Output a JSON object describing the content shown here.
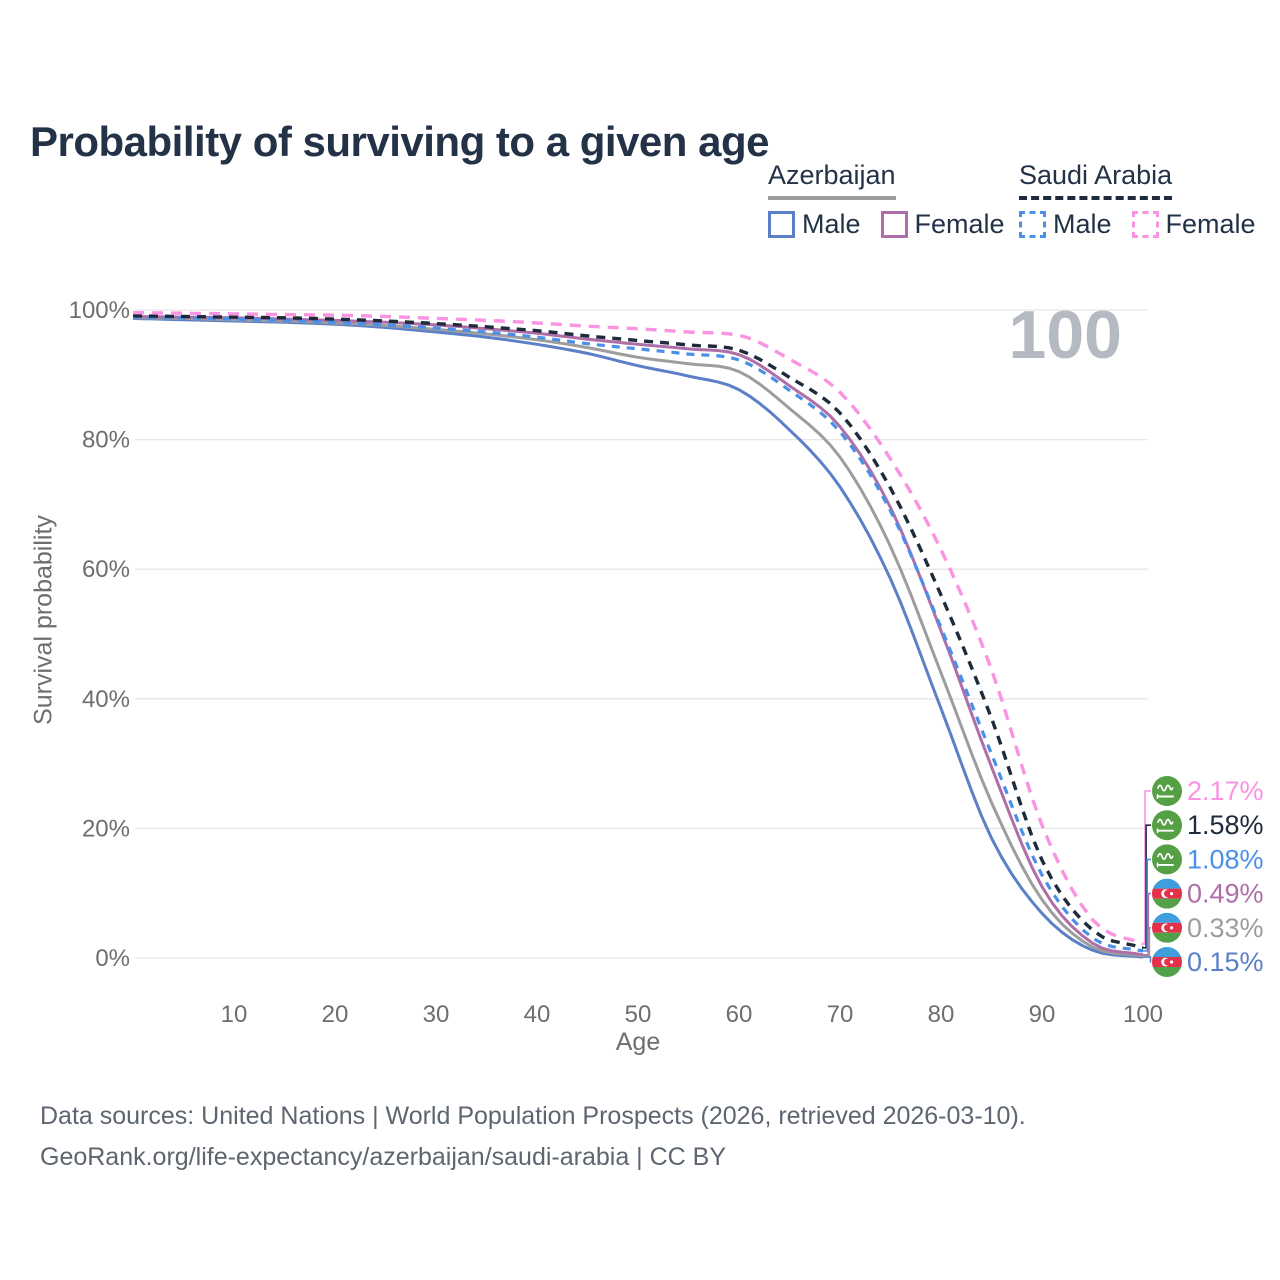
{
  "header": {
    "title": "Probability of surviving to a given age"
  },
  "legend": {
    "groups": [
      {
        "country": "Azerbaijan",
        "underline_series": "az-total",
        "items": [
          {
            "label": "Male",
            "series": "az-male"
          },
          {
            "label": "Female",
            "series": "az-female"
          }
        ]
      },
      {
        "country": "Saudi Arabia",
        "underline_series": "sa-total",
        "items": [
          {
            "label": "Male",
            "series": "sa-male"
          },
          {
            "label": "Female",
            "series": "sa-female"
          }
        ]
      }
    ]
  },
  "footer": {
    "line1": "Data sources: United Nations | World Population Prospects (2026, retrieved 2026-03-10).",
    "line2": "GeoRank.org/life-expectancy/azerbaijan/saudi-arabia | CC BY"
  },
  "colors": {
    "title_text": "#243248",
    "axis_text": "#6e6e6e",
    "gridline": "#e7e7e7",
    "watermark": "#b5b9c1",
    "footer_text": "#5d6670",
    "saudi_flag_green": "#55a045",
    "azerbaijan_flag_blue": "#3e9ede",
    "azerbaijan_flag_red": "#e5304c",
    "azerbaijan_flag_green": "#52a148"
  },
  "chart_data": {
    "type": "line",
    "title": "Probability of surviving to a given age",
    "xlabel": "Age",
    "ylabel": "Survival probability",
    "watermark": "100",
    "xlim": [
      0,
      100
    ],
    "ylim": [
      0,
      100
    ],
    "xticks": [
      10,
      20,
      30,
      40,
      50,
      60,
      70,
      80,
      90,
      100
    ],
    "yticks": [
      0,
      20,
      40,
      60,
      80,
      100
    ],
    "ytick_suffix": "%",
    "grid": "horizontal",
    "legend_position": "top-right",
    "x": [
      0,
      5,
      10,
      15,
      20,
      25,
      30,
      35,
      40,
      45,
      50,
      55,
      60,
      65,
      70,
      75,
      80,
      85,
      90,
      95,
      100
    ],
    "series": [
      {
        "id": "sa-female",
        "country": "Saudi Arabia",
        "sex": "Female",
        "flag": "saudi-arabia",
        "color": "#f993e2",
        "line": "dashed",
        "dash": "11 8",
        "width": 3.4,
        "end_label": "2.17%",
        "values": [
          99.6,
          99.5,
          99.4,
          99.3,
          99.2,
          99.0,
          98.7,
          98.4,
          98.0,
          97.5,
          97.1,
          96.6,
          96.1,
          92.4,
          87.3,
          77.0,
          63.0,
          44.5,
          20.5,
          5.9,
          2.17
        ]
      },
      {
        "id": "sa-total",
        "country": "Saudi Arabia",
        "sex": "Both sexes",
        "flag": "saudi-arabia",
        "color": "#1d2b3b",
        "line": "dashed",
        "dash": "9 7",
        "width": 3.4,
        "end_label": "1.58%",
        "values": [
          99.1,
          99.0,
          98.9,
          98.8,
          98.6,
          98.3,
          97.9,
          97.4,
          96.8,
          96.0,
          95.3,
          94.6,
          93.8,
          89.6,
          84.1,
          72.5,
          56.0,
          37.0,
          15.1,
          4.3,
          1.58
        ]
      },
      {
        "id": "sa-male",
        "country": "Saudi Arabia",
        "sex": "Male",
        "flag": "saudi-arabia",
        "color": "#4b90e8",
        "line": "dashed",
        "dash": "8 7",
        "width": 3.2,
        "end_label": "1.08%",
        "values": [
          98.9,
          98.8,
          98.6,
          98.4,
          98.1,
          97.7,
          97.2,
          96.6,
          95.8,
          94.8,
          94.0,
          93.2,
          92.3,
          87.6,
          81.2,
          69.0,
          51.0,
          31.5,
          12.8,
          3.1,
          1.08
        ]
      },
      {
        "id": "az-female",
        "country": "Azerbaijan",
        "sex": "Female",
        "flag": "azerbaijan",
        "color": "#ae6fa9",
        "line": "solid",
        "dash": "",
        "width": 3,
        "end_label": "0.49%",
        "values": [
          99.0,
          98.9,
          98.8,
          98.6,
          98.4,
          98.1,
          97.7,
          97.1,
          96.4,
          95.5,
          94.7,
          94.0,
          93.1,
          88.3,
          82.0,
          69.5,
          50.5,
          29.5,
          11.0,
          2.3,
          0.49
        ]
      },
      {
        "id": "az-total",
        "country": "Azerbaijan",
        "sex": "Both sexes",
        "flag": "azerbaijan",
        "color": "#9d9d9d",
        "line": "solid",
        "dash": "",
        "width": 3,
        "end_label": "0.33%",
        "values": [
          98.8,
          98.7,
          98.5,
          98.3,
          98.0,
          97.6,
          97.0,
          96.3,
          95.4,
          94.2,
          92.7,
          91.7,
          90.5,
          84.8,
          77.3,
          63.5,
          44.0,
          24.0,
          9.0,
          1.7,
          0.33
        ]
      },
      {
        "id": "az-male",
        "country": "Azerbaijan",
        "sex": "Male",
        "flag": "azerbaijan",
        "color": "#5b80c8",
        "line": "solid",
        "dash": "",
        "width": 3,
        "end_label": "0.15%",
        "values": [
          98.7,
          98.5,
          98.3,
          98.1,
          97.8,
          97.3,
          96.6,
          95.8,
          94.7,
          93.3,
          91.4,
          89.8,
          87.7,
          81.5,
          72.7,
          58.5,
          38.5,
          18.5,
          6.9,
          1.2,
          0.15
        ]
      }
    ]
  }
}
